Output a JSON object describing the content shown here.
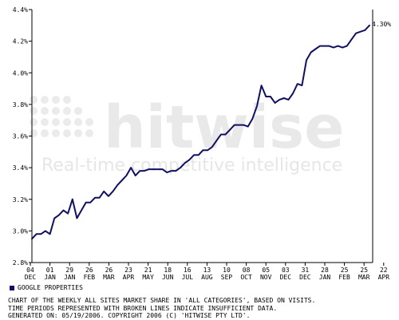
{
  "watermark": {
    "brand": "hitwise",
    "tagline": "Real-time competitive intelligence"
  },
  "legend": {
    "swatch_color": "#101063",
    "label": "GOOGLE PROPERTIES"
  },
  "caption": {
    "line1": "CHART OF THE WEEKLY ALL SITES MARKET SHARE IN 'ALL CATEGORIES', BASED ON VISITS.",
    "line2": "TIME PERIODS REPRESENTED WITH BROKEN LINES INDICATE INSUFFICIENT DATA.",
    "line3": "GENERATED ON: 05/19/2006. COPYRIGHT 2006 (C) 'HITWISE PTY LTD'."
  },
  "chart_data": {
    "type": "line",
    "title": "",
    "xlabel": "",
    "ylabel": "",
    "ylim": [
      2.8,
      4.4
    ],
    "y_ticks": [
      "2.8%",
      "3.0%",
      "3.2%",
      "3.4%",
      "3.6%",
      "3.8%",
      "4.0%",
      "4.2%",
      "4.4%"
    ],
    "x_ticks": [
      {
        "day": "04",
        "month": "DEC"
      },
      {
        "day": "01",
        "month": "JAN"
      },
      {
        "day": "29",
        "month": "JAN"
      },
      {
        "day": "26",
        "month": "FEB"
      },
      {
        "day": "26",
        "month": "MAR"
      },
      {
        "day": "23",
        "month": "APR"
      },
      {
        "day": "21",
        "month": "MAY"
      },
      {
        "day": "18",
        "month": "JUN"
      },
      {
        "day": "16",
        "month": "JUL"
      },
      {
        "day": "13",
        "month": "AUG"
      },
      {
        "day": "10",
        "month": "SEP"
      },
      {
        "day": "08",
        "month": "OCT"
      },
      {
        "day": "05",
        "month": "NOV"
      },
      {
        "day": "03",
        "month": "DEC"
      },
      {
        "day": "31",
        "month": "DEC"
      },
      {
        "day": "28",
        "month": "JAN"
      },
      {
        "day": "25",
        "month": "FEB"
      },
      {
        "day": "25",
        "month": "MAR"
      },
      {
        "day": "22",
        "month": "APR"
      }
    ],
    "grid": false,
    "legend_position": "bottom-left",
    "last_value_label": "4.30%",
    "series": [
      {
        "name": "GOOGLE PROPERTIES",
        "color": "#101063",
        "values": [
          2.95,
          2.98,
          2.98,
          3.0,
          2.98,
          3.08,
          3.1,
          3.13,
          3.11,
          3.2,
          3.08,
          3.13,
          3.18,
          3.18,
          3.21,
          3.21,
          3.25,
          3.22,
          3.25,
          3.29,
          3.32,
          3.35,
          3.4,
          3.35,
          3.38,
          3.38,
          3.39,
          3.39,
          3.39,
          3.39,
          3.37,
          3.38,
          3.38,
          3.4,
          3.43,
          3.45,
          3.48,
          3.48,
          3.51,
          3.51,
          3.53,
          3.57,
          3.61,
          3.61,
          3.64,
          3.67,
          3.67,
          3.67,
          3.66,
          3.71,
          3.79,
          3.92,
          3.85,
          3.85,
          3.81,
          3.83,
          3.84,
          3.83,
          3.87,
          3.93,
          3.92,
          4.08,
          4.13,
          4.15,
          4.17,
          4.17,
          4.17,
          4.16,
          4.17,
          4.16,
          4.17,
          4.21,
          4.25,
          4.26,
          4.27,
          4.3
        ]
      }
    ]
  }
}
